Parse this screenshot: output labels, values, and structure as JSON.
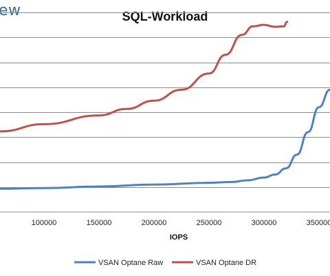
{
  "brand": {
    "text": "ew"
  },
  "chart_data": {
    "type": "line",
    "title": "SQL-Workload",
    "xlabel": "IOPS",
    "ylabel": "",
    "xlim": [
      60000,
      360000
    ],
    "ylim": [
      0,
      8
    ],
    "x_ticks": [
      100000,
      150000,
      200000,
      250000,
      300000,
      350000
    ],
    "x_tick_labels": [
      "100000",
      "150000",
      "200000",
      "250000",
      "300000",
      "350000"
    ],
    "y_gridlines": [
      1,
      2,
      3,
      4,
      5,
      6,
      7,
      8
    ],
    "grid": true,
    "legend_position": "bottom",
    "series": [
      {
        "name": "VSAN Optane Raw",
        "color": "#4f81bd",
        "points": [
          [
            60000,
            0.93
          ],
          [
            100000,
            0.96
          ],
          [
            150000,
            1.02
          ],
          [
            200000,
            1.1
          ],
          [
            250000,
            1.17
          ],
          [
            270000,
            1.2
          ],
          [
            285000,
            1.27
          ],
          [
            300000,
            1.38
          ],
          [
            310000,
            1.5
          ],
          [
            320000,
            1.75
          ],
          [
            330000,
            2.3
          ],
          [
            340000,
            3.2
          ],
          [
            350000,
            4.2
          ],
          [
            360000,
            4.9
          ]
        ]
      },
      {
        "name": "VSAN Optane DR",
        "color": "#c0504d",
        "points": [
          [
            60000,
            3.23
          ],
          [
            100000,
            3.52
          ],
          [
            150000,
            3.87
          ],
          [
            175000,
            4.13
          ],
          [
            200000,
            4.46
          ],
          [
            225000,
            4.9
          ],
          [
            250000,
            5.55
          ],
          [
            265000,
            6.3
          ],
          [
            280000,
            7.1
          ],
          [
            290000,
            7.44
          ],
          [
            300000,
            7.5
          ],
          [
            310000,
            7.42
          ],
          [
            318000,
            7.44
          ],
          [
            321000,
            7.62
          ]
        ]
      }
    ]
  }
}
